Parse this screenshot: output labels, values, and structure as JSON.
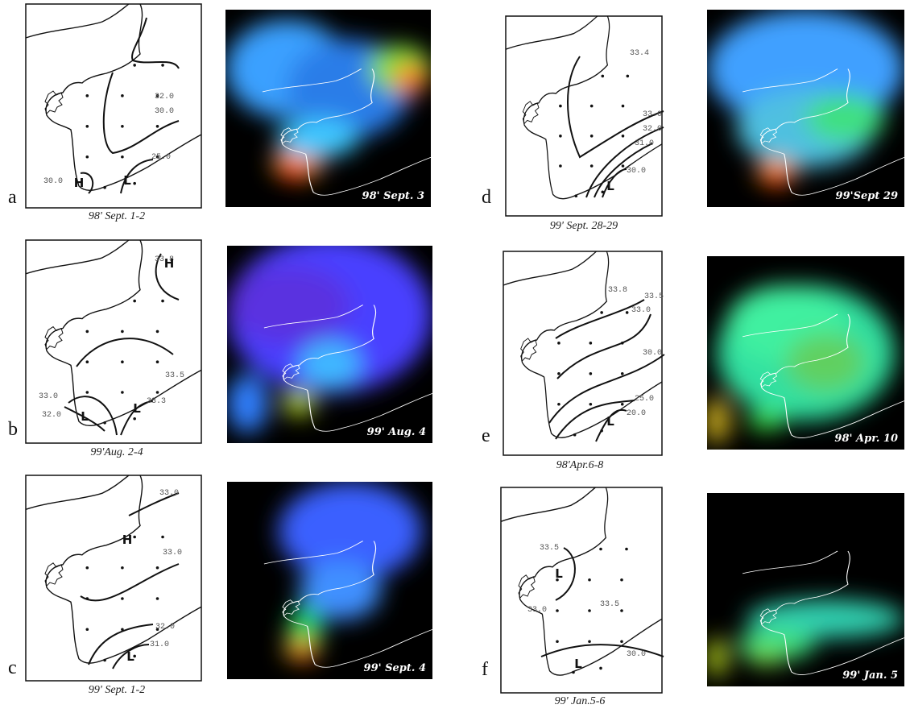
{
  "panels": [
    {
      "letter": "a",
      "caption": "98' Sept. 1-2",
      "image_label": "98' Sept. 3",
      "contour_labels": [
        "32.0",
        "30.0",
        "25.0",
        "30.0"
      ],
      "markers": [
        "H",
        "L"
      ]
    },
    {
      "letter": "b",
      "caption": "99'Aug. 2-4",
      "image_label": "99' Aug. 4",
      "contour_labels": [
        "33.8",
        "33.5",
        "33.0",
        "33.3",
        "32.0"
      ],
      "markers": [
        "H",
        "L",
        "L"
      ]
    },
    {
      "letter": "c",
      "caption": "99' Sept. 1-2",
      "image_label": "99' Sept. 4",
      "contour_labels": [
        "33.0",
        "33.0",
        "32.0",
        "31.0"
      ],
      "markers": [
        "H",
        "L"
      ]
    },
    {
      "letter": "d",
      "caption": "99' Sept. 28-29",
      "image_label": "99'Sept 29",
      "contour_labels": [
        "33.4",
        "33.0",
        "32.0",
        "31.0",
        "30.0"
      ],
      "markers": [
        "L"
      ]
    },
    {
      "letter": "e",
      "caption": "98'Apr.6-8",
      "image_label": "98' Apr. 10",
      "contour_labels": [
        "33.8",
        "33.5",
        "33.0",
        "30.0",
        "25.0",
        "20.0"
      ],
      "markers": [
        "L"
      ]
    },
    {
      "letter": "f",
      "caption": "99' Jan.5-6",
      "image_label": "99' Jan. 5",
      "contour_labels": [
        "33.5",
        "33.0",
        "33.5",
        "30.0"
      ],
      "markers": [
        "L",
        "L"
      ]
    }
  ]
}
